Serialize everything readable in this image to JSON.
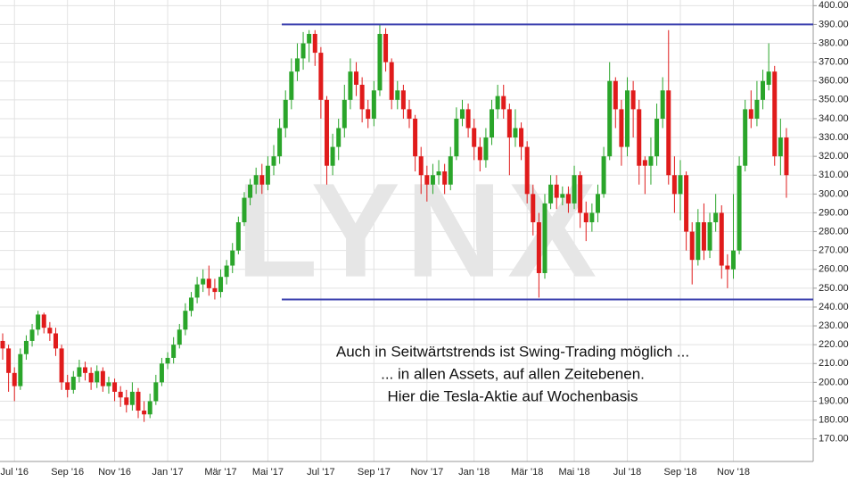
{
  "chart_data": {
    "type": "candlestick",
    "watermark": "LYNX",
    "annotations": [
      "Auch in Seitwärtstrends ist Swing-Trading möglich ...",
      "... in allen Assets, auf allen Zeitebenen.",
      "Hier die Tesla-Aktie auf Wochenbasis"
    ],
    "categories": [
      null,
      null,
      "Jul '16",
      null,
      null,
      null,
      null,
      null,
      null,
      null,
      null,
      "Sep '16",
      null,
      null,
      null,
      null,
      null,
      null,
      null,
      "Nov '16",
      null,
      null,
      null,
      null,
      null,
      null,
      null,
      null,
      "Jan '17",
      null,
      null,
      null,
      null,
      null,
      null,
      null,
      null,
      "Mär '17",
      null,
      null,
      null,
      null,
      null,
      null,
      null,
      "Mai '17",
      null,
      null,
      null,
      null,
      null,
      null,
      null,
      null,
      "Jul '17",
      null,
      null,
      null,
      null,
      null,
      null,
      null,
      null,
      "Sep '17",
      null,
      null,
      null,
      null,
      null,
      null,
      null,
      null,
      "Nov '17",
      null,
      null,
      null,
      null,
      null,
      null,
      null,
      "Jan '18",
      null,
      null,
      null,
      null,
      null,
      null,
      null,
      null,
      "Mär '18",
      null,
      null,
      null,
      null,
      null,
      null,
      null,
      "Mai '18",
      null,
      null,
      null,
      null,
      null,
      null,
      null,
      null,
      "Jul '18",
      null,
      null,
      null,
      null,
      null,
      null,
      null,
      null,
      "Sep '18",
      null,
      null,
      null,
      null,
      null,
      null,
      null,
      null,
      "Nov '18",
      null,
      null,
      null,
      null,
      null,
      null,
      null,
      null,
      null
    ],
    "open": [
      222,
      218,
      205,
      198,
      215,
      222,
      228,
      236,
      229,
      226,
      218,
      200,
      196,
      203,
      208,
      205,
      200,
      206,
      198,
      200,
      195,
      192,
      188,
      195,
      185,
      183,
      190,
      200,
      210,
      213,
      220,
      228,
      238,
      245,
      252,
      255,
      250,
      248,
      256,
      262,
      270,
      285,
      298,
      305,
      310,
      305,
      315,
      320,
      335,
      350,
      365,
      372,
      380,
      385,
      375,
      350,
      315,
      325,
      335,
      350,
      365,
      358,
      345,
      340,
      355,
      385,
      370,
      350,
      355,
      345,
      340,
      320,
      310,
      305,
      310,
      312,
      305,
      320,
      340,
      345,
      335,
      325,
      318,
      330,
      345,
      352,
      345,
      330,
      335,
      325,
      300,
      285,
      258,
      295,
      305,
      298,
      300,
      295,
      310,
      290,
      285,
      290,
      300,
      320,
      360,
      345,
      325,
      355,
      345,
      318,
      315,
      320,
      340,
      355,
      310,
      300,
      310,
      280,
      265,
      285,
      270,
      285,
      290,
      262,
      260,
      270,
      315,
      345,
      340,
      350,
      358,
      365,
      320,
      330
    ],
    "high": [
      226,
      220,
      208,
      218,
      225,
      231,
      238,
      237,
      232,
      229,
      220,
      204,
      206,
      212,
      211,
      208,
      209,
      208,
      203,
      202,
      198,
      196,
      200,
      197,
      190,
      194,
      204,
      213,
      216,
      224,
      231,
      242,
      248,
      256,
      260,
      262,
      255,
      260,
      265,
      274,
      288,
      301,
      308,
      314,
      316,
      320,
      326,
      340,
      355,
      372,
      380,
      386,
      387,
      387,
      378,
      352,
      332,
      340,
      358,
      372,
      370,
      362,
      350,
      360,
      390,
      388,
      372,
      360,
      358,
      350,
      342,
      325,
      315,
      316,
      318,
      316,
      325,
      346,
      350,
      348,
      340,
      330,
      335,
      350,
      358,
      358,
      348,
      345,
      338,
      328,
      305,
      290,
      300,
      310,
      310,
      304,
      304,
      315,
      312,
      296,
      295,
      305,
      325,
      370,
      362,
      350,
      362,
      360,
      350,
      320,
      330,
      348,
      362,
      387,
      320,
      318,
      312,
      285,
      292,
      295,
      290,
      300,
      294,
      268,
      300,
      320,
      350,
      355,
      360,
      366,
      380,
      368,
      340,
      335
    ],
    "low": [
      212,
      195,
      190,
      196,
      212,
      219,
      225,
      226,
      222,
      214,
      196,
      192,
      194,
      200,
      201,
      196,
      197,
      195,
      194,
      190,
      187,
      184,
      185,
      181,
      179,
      181,
      188,
      198,
      207,
      210,
      218,
      225,
      235,
      242,
      248,
      246,
      244,
      245,
      252,
      258,
      268,
      283,
      294,
      300,
      300,
      302,
      310,
      316,
      330,
      345,
      360,
      366,
      370,
      368,
      340,
      305,
      310,
      318,
      330,
      345,
      352,
      338,
      335,
      336,
      352,
      365,
      345,
      345,
      340,
      335,
      312,
      300,
      296,
      300,
      305,
      300,
      302,
      318,
      336,
      330,
      318,
      312,
      314,
      326,
      340,
      340,
      310,
      325,
      318,
      295,
      278,
      245,
      255,
      292,
      292,
      294,
      290,
      292,
      282,
      275,
      280,
      285,
      298,
      318,
      335,
      315,
      320,
      330,
      305,
      300,
      305,
      315,
      335,
      305,
      290,
      286,
      270,
      252,
      262,
      265,
      266,
      280,
      255,
      250,
      255,
      268,
      312,
      335,
      336,
      345,
      355,
      315,
      310,
      298
    ],
    "close": [
      218,
      205,
      198,
      215,
      222,
      228,
      236,
      229,
      226,
      218,
      200,
      196,
      203,
      208,
      205,
      200,
      206,
      198,
      200,
      195,
      192,
      188,
      195,
      185,
      183,
      190,
      200,
      210,
      213,
      220,
      228,
      238,
      245,
      252,
      255,
      250,
      248,
      256,
      262,
      270,
      285,
      298,
      305,
      310,
      305,
      315,
      320,
      335,
      350,
      365,
      372,
      380,
      385,
      375,
      350,
      315,
      325,
      335,
      350,
      365,
      358,
      345,
      340,
      355,
      385,
      370,
      350,
      355,
      345,
      340,
      320,
      310,
      305,
      310,
      312,
      305,
      320,
      340,
      345,
      335,
      325,
      318,
      330,
      345,
      352,
      345,
      330,
      335,
      325,
      300,
      285,
      258,
      295,
      305,
      298,
      300,
      295,
      310,
      290,
      285,
      290,
      300,
      320,
      360,
      345,
      325,
      355,
      345,
      315,
      315,
      320,
      340,
      355,
      310,
      300,
      310,
      280,
      265,
      285,
      270,
      285,
      290,
      262,
      260,
      270,
      315,
      345,
      340,
      350,
      360,
      365,
      320,
      330,
      310
    ],
    "up_color": "#2aa52a",
    "down_color": "#e01b1b",
    "hlines": [
      390,
      244
    ],
    "hline_color": "#3a3fae",
    "ylim": [
      158,
      403
    ],
    "yticks": [
      {
        "value": 170,
        "label": "170.00"
      },
      {
        "value": 180,
        "label": "180.00"
      },
      {
        "value": 190,
        "label": "190.00"
      },
      {
        "value": 200,
        "label": "200.00"
      },
      {
        "value": 210,
        "label": "210.00"
      },
      {
        "value": 220,
        "label": "220.00"
      },
      {
        "value": 230,
        "label": "230.00"
      },
      {
        "value": 240,
        "label": "240.00"
      },
      {
        "value": 250,
        "label": "250.00"
      },
      {
        "value": 260,
        "label": "260.00"
      },
      {
        "value": 270,
        "label": "270.00"
      },
      {
        "value": 280,
        "label": "280.00"
      },
      {
        "value": 290,
        "label": "290.00"
      },
      {
        "value": 300,
        "label": "300.00"
      },
      {
        "value": 310,
        "label": "310.00"
      },
      {
        "value": 320,
        "label": "320.00"
      },
      {
        "value": 330,
        "label": "330.00"
      },
      {
        "value": 340,
        "label": "340.00"
      },
      {
        "value": 350,
        "label": "350.00"
      },
      {
        "value": 360,
        "label": "360.00"
      },
      {
        "value": 370,
        "label": "370.00"
      },
      {
        "value": 380,
        "label": "380.00"
      },
      {
        "value": 390,
        "label": "390.00"
      },
      {
        "value": 400,
        "label": "400.00"
      }
    ],
    "grid": true
  }
}
